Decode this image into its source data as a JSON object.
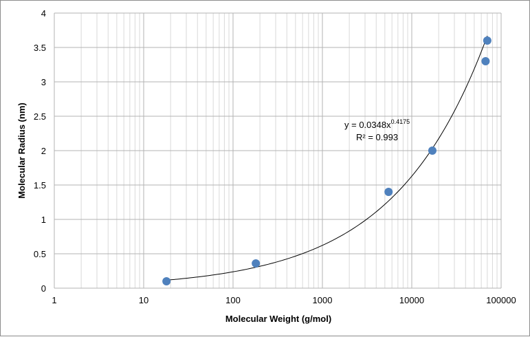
{
  "chart_data": {
    "type": "scatter",
    "xlabel": "Molecular Weight (g/mol)",
    "ylabel": "Molecular Radius (nm)",
    "x_scale": "log",
    "xlim": [
      1,
      100000
    ],
    "ylim": [
      0,
      4
    ],
    "x_ticks": [
      1,
      10,
      100,
      1000,
      10000,
      100000
    ],
    "x_tick_labels": [
      "1",
      "10",
      "100",
      "1000",
      "10000",
      "100000"
    ],
    "y_ticks": [
      0,
      0.5,
      1,
      1.5,
      2,
      2.5,
      3,
      3.5,
      4
    ],
    "y_tick_labels": [
      "0",
      "0.5",
      "1",
      "1.5",
      "2",
      "2.5",
      "3",
      "3.5",
      "4"
    ],
    "grid": true,
    "marker_color": "#4f81bd",
    "points": [
      {
        "x": 18,
        "y": 0.1
      },
      {
        "x": 180,
        "y": 0.36
      },
      {
        "x": 5500,
        "y": 1.4
      },
      {
        "x": 17000,
        "y": 2.0
      },
      {
        "x": 67000,
        "y": 3.3
      },
      {
        "x": 70000,
        "y": 3.6
      }
    ],
    "trendline": {
      "type": "power",
      "coefficient": 0.0348,
      "exponent": 0.4175,
      "x_range": [
        18,
        70000
      ],
      "equation_prefix": "y = 0.0348x",
      "equation_exponent": "0.4175",
      "r_squared_label": "R² = 0.993"
    }
  }
}
